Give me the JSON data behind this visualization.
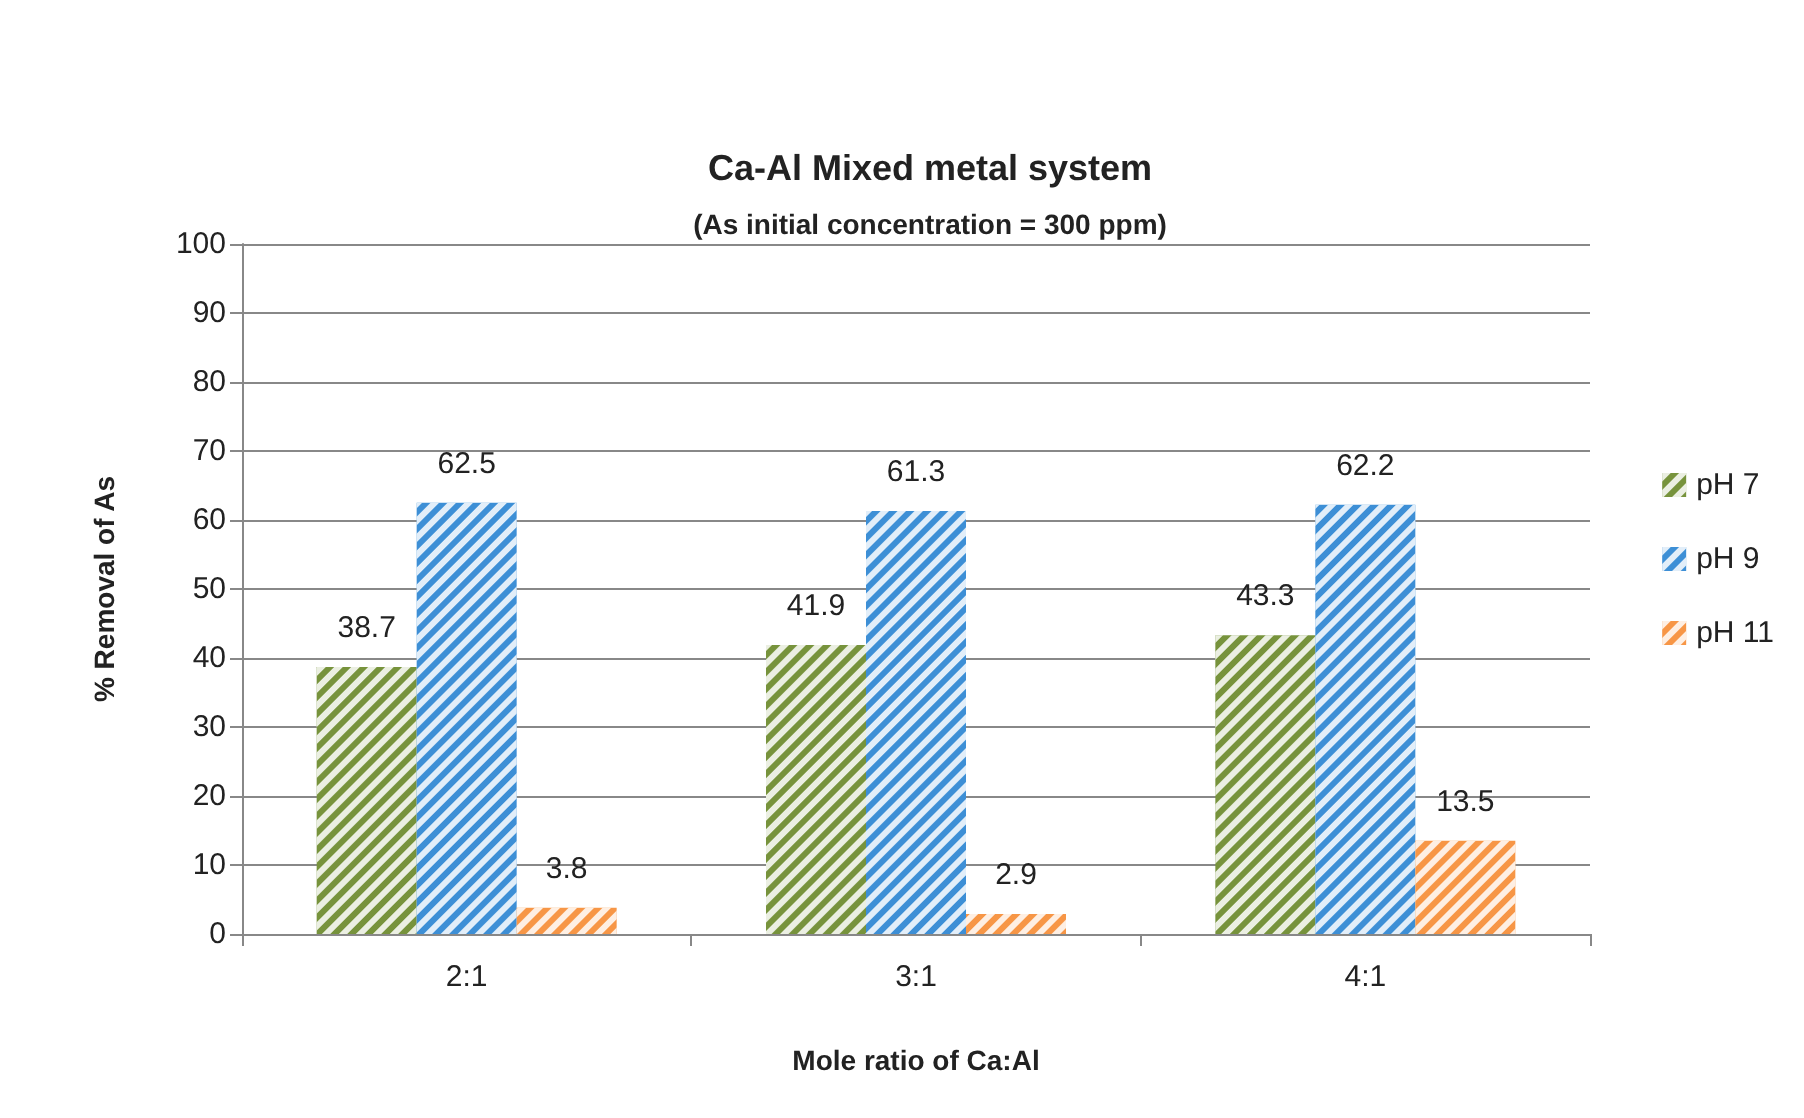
{
  "chart_data": {
    "type": "bar",
    "title": "Ca-Al Mixed metal system",
    "subtitle": "(As initial concentration = 300 ppm)",
    "xlabel": "Mole ratio of Ca:Al",
    "ylabel": "% Removal of As",
    "categories": [
      "2:1",
      "3:1",
      "4:1"
    ],
    "series": [
      {
        "name": "pH 7",
        "color": "#77933c",
        "values": [
          38.7,
          41.9,
          43.3
        ]
      },
      {
        "name": "pH 9",
        "color": "#3d8fd6",
        "values": [
          62.5,
          61.3,
          62.2
        ]
      },
      {
        "name": "pH 11",
        "color": "#f79646",
        "values": [
          3.8,
          2.9,
          13.5
        ]
      }
    ],
    "ylim": [
      0,
      100
    ],
    "yticks": [
      0,
      10,
      20,
      30,
      40,
      50,
      60,
      70,
      80,
      90,
      100
    ],
    "grid": "y",
    "legend": "right",
    "data_labels": true
  }
}
